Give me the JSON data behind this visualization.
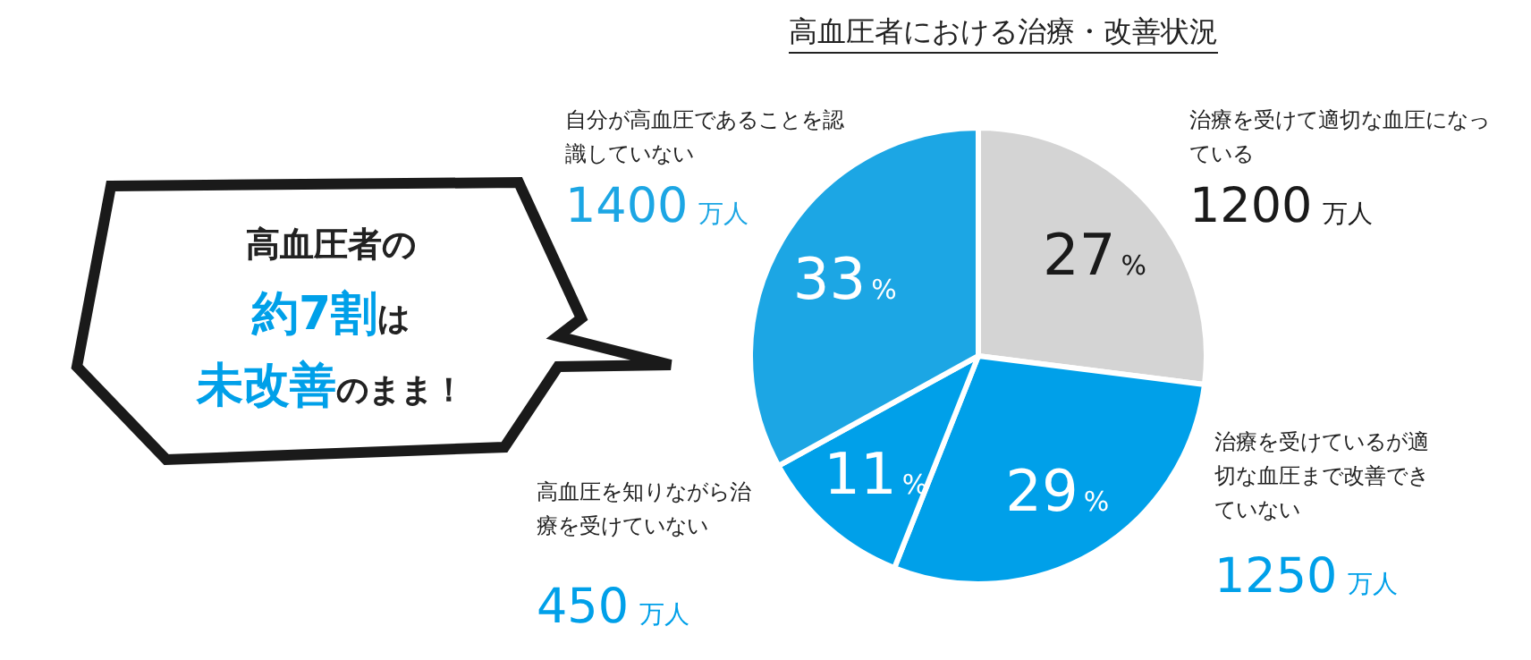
{
  "chart_data": {
    "type": "pie",
    "title": "高血圧者における治療・改善状況",
    "categories": [
      "治療を受けて適切な血圧になっている",
      "治療を受けているが適切な血圧まで改善できていない",
      "高血圧を知りながら治療を受けていない",
      "自分が高血圧であることを認識していない"
    ],
    "values": [
      27,
      29,
      11,
      33
    ],
    "colors": [
      "#d4d4d4",
      "#00a0e9",
      "#00a0e9",
      "#1ca6e4"
    ],
    "value_labels": [
      "27%",
      "29%",
      "11%",
      "33%"
    ],
    "annotations": [
      "1200万人",
      "1250万人",
      "450万人",
      "1400万人",
      "高血圧者の",
      "約7割は",
      "未改善のまま！"
    ]
  }
}
